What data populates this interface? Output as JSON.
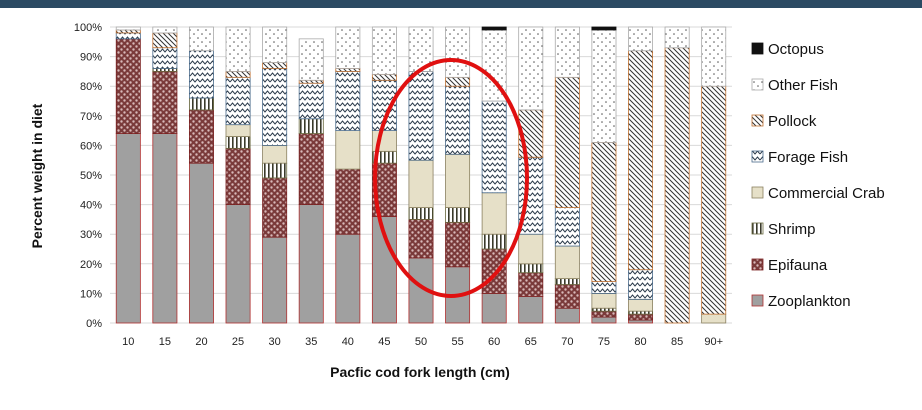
{
  "colors": {
    "top_band": "#2b4a63",
    "Zooplankton": "#a0a0a0",
    "Epifauna": "#8a4a4a",
    "Shrimp": "#ffffff",
    "Commercial Crab": "#e6e0c8",
    "Forage Fish": "#ffffff",
    "Pollock": "#ffffff",
    "Other Fish": "#ffffff",
    "Octopus": "#111111",
    "highlight": "#e01010"
  },
  "chart_data": {
    "type": "bar",
    "stacked": true,
    "percent": true,
    "title": "",
    "xlabel": "Pacfic cod fork length (cm)",
    "ylabel": "Percent weight in diet",
    "ylim": [
      0,
      100
    ],
    "yticks": [
      "0%",
      "10%",
      "20%",
      "30%",
      "40%",
      "50%",
      "60%",
      "70%",
      "80%",
      "90%",
      "100%"
    ],
    "legend_position": "right",
    "categories": [
      "10",
      "15",
      "20",
      "25",
      "30",
      "35",
      "40",
      "45",
      "50",
      "55",
      "60",
      "65",
      "70",
      "75",
      "80",
      "85",
      "90+"
    ],
    "series": [
      {
        "name": "Zooplankton",
        "pattern": "solid",
        "values": [
          64,
          64,
          54,
          40,
          29,
          40,
          30,
          36,
          22,
          19,
          10,
          9,
          5,
          2,
          1,
          0,
          0
        ]
      },
      {
        "name": "Epifauna",
        "pattern": "dots",
        "values": [
          32,
          21,
          18,
          19,
          20,
          24,
          22,
          18,
          13,
          15,
          15,
          8,
          8,
          2,
          2,
          0,
          0
        ]
      },
      {
        "name": "Shrimp",
        "pattern": "vlines",
        "values": [
          0,
          1,
          4,
          4,
          5,
          5,
          0,
          4,
          4,
          5,
          5,
          3,
          2,
          1,
          1,
          0,
          0
        ]
      },
      {
        "name": "Commercial Crab",
        "pattern": "solid",
        "values": [
          0,
          0,
          0,
          4,
          6,
          0,
          13,
          7,
          16,
          18,
          14,
          10,
          11,
          5,
          4,
          0,
          3
        ]
      },
      {
        "name": "Forage Fish",
        "pattern": "zigzag",
        "values": [
          2,
          7,
          16,
          16,
          26,
          12,
          20,
          17,
          30,
          23,
          31,
          26,
          13,
          4,
          10,
          0,
          0
        ]
      },
      {
        "name": "Pollock",
        "pattern": "hatch",
        "values": [
          1,
          5,
          0,
          2,
          2,
          1,
          1,
          2,
          0,
          3,
          0,
          16,
          44,
          47,
          74,
          93,
          77
        ]
      },
      {
        "name": "Other Fish",
        "pattern": "sparse",
        "values": [
          1,
          2,
          8,
          15,
          12,
          14,
          14,
          16,
          15,
          17,
          24,
          28,
          17,
          38,
          8,
          7,
          20
        ]
      },
      {
        "name": "Octopus",
        "pattern": "solid",
        "values": [
          0,
          0,
          0,
          0,
          0,
          0,
          0,
          0,
          0,
          0,
          1,
          0,
          0,
          1,
          0,
          0,
          0
        ]
      }
    ],
    "legend_order": [
      "Octopus",
      "Other Fish",
      "Pollock",
      "Forage Fish",
      "Commercial Crab",
      "Shrimp",
      "Epifauna",
      "Zooplankton"
    ],
    "annotation": {
      "shape": "ellipse",
      "covers_categories": [
        "50",
        "55",
        "60"
      ],
      "color": "#e01010"
    }
  }
}
